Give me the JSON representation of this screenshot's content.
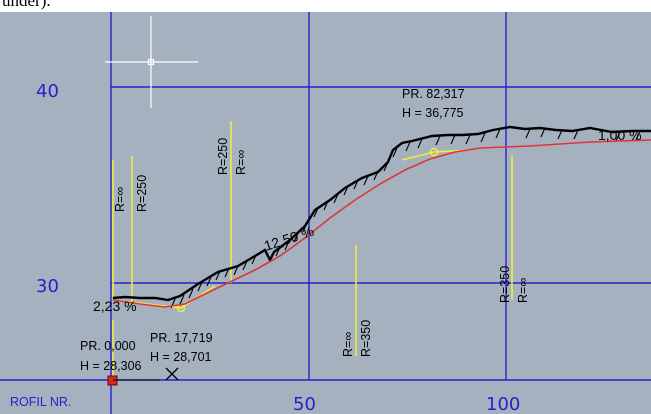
{
  "top_text": "under).",
  "axis": {
    "y_40": "40",
    "y_30": "30",
    "x_50": "50",
    "x_100": "100",
    "row_label": "ROFIL NR."
  },
  "curves": {
    "c1_a": "R=∞",
    "c1_b": "R=250",
    "c2_a": "R=250",
    "c2_b": "R=∞",
    "c3_a": "R=∞",
    "c3_b": "R=350",
    "c4_a": "R=350",
    "c4_b": "R=∞"
  },
  "gradients": {
    "g1": "2,23 %",
    "g2": "12,50 %",
    "g3": "1,00 %"
  },
  "stations": {
    "s1_pr": "PR. 0,000",
    "s1_h": "H = 28,306",
    "s2_pr": "PR. 17,719",
    "s2_h": "H = 28,701",
    "s3_pr": "PR. 82,317",
    "s3_h": "H = 36,775"
  },
  "colors": {
    "background": "#a6b1c0",
    "grid": "#2323c9",
    "design_line": "#e03535",
    "vertical_curves": "#f0ef3a",
    "terrain": "#000000"
  }
}
